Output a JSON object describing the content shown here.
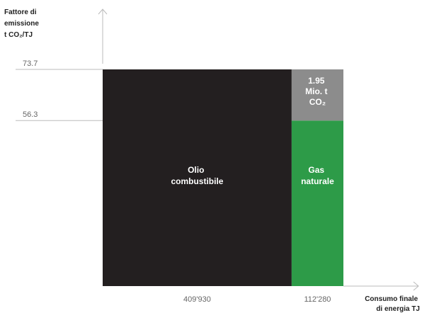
{
  "chart_data": {
    "type": "marimekko",
    "y_axis_title_lines": [
      "Fattore di",
      "emissione",
      "t CO₂/TJ"
    ],
    "x_axis_title_lines": [
      "Consumo finale",
      "di energia TJ"
    ],
    "y_ticks": [
      {
        "value": 73.7,
        "label": "73.7"
      },
      {
        "value": 56.3,
        "label": "56.3"
      }
    ],
    "bars": [
      {
        "name_lines": [
          "Olio",
          "combustibile"
        ],
        "width_value": 409930,
        "width_label": "409'930",
        "height_value": 73.7,
        "color": "#231f20"
      },
      {
        "name_lines": [
          "Gas",
          "naturale"
        ],
        "width_value": 112280,
        "width_label": "112'280",
        "height_value": 56.3,
        "color": "#2d9b48"
      }
    ],
    "difference_block": {
      "label_lines": [
        "1.95",
        "Mio. t",
        "CO₂"
      ],
      "from_value": 56.3,
      "to_value": 73.7,
      "color": "#8c8c8c"
    },
    "axis_color": "#bbbbbb"
  }
}
